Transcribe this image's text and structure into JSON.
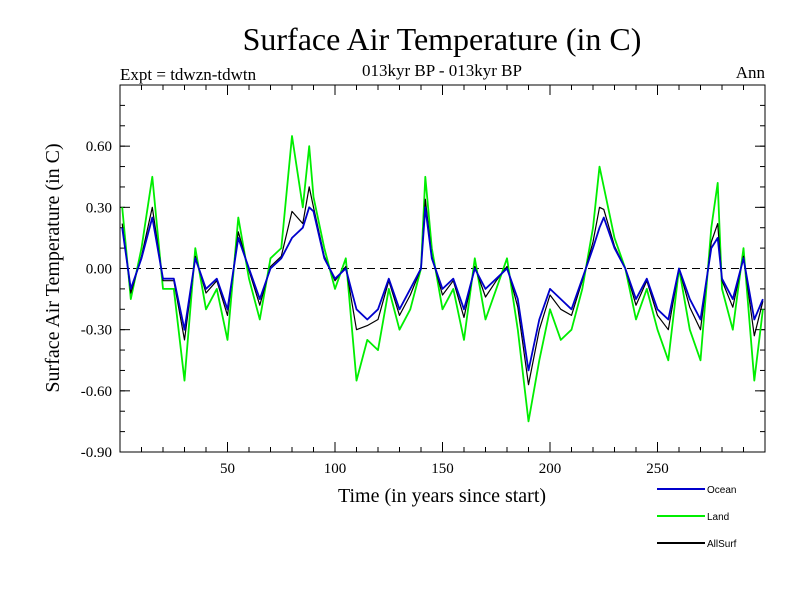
{
  "chart_data": {
    "type": "line",
    "title": "Surface Air Temperature (in C)",
    "subtitle": "013kyr BP - 013kyr BP",
    "expt_label": "Expt = tdwzn-tdwtn",
    "season_label": "Ann",
    "xlabel": "Time (in years since start)",
    "ylabel": "Surface Air Temperature (in C)",
    "xlim": [
      0,
      300
    ],
    "ylim": [
      -0.9,
      0.9
    ],
    "xticks": [
      50,
      100,
      150,
      200,
      250
    ],
    "xtick_labels": [
      "50",
      "100",
      "150",
      "200",
      "250"
    ],
    "yticks": [
      -0.9,
      -0.6,
      -0.3,
      0.0,
      0.3,
      0.6
    ],
    "ytick_labels": [
      "-0.90",
      "-0.60",
      "-0.30",
      "0.00",
      "0.30",
      "0.60"
    ],
    "zero_line": "dashed",
    "grid": false,
    "legend_position": "below-right",
    "series": [
      {
        "name": "Ocean",
        "color": "#0000cc",
        "x": [
          1,
          5,
          10,
          15,
          20,
          25,
          30,
          35,
          40,
          45,
          50,
          55,
          60,
          65,
          70,
          75,
          80,
          85,
          88,
          90,
          95,
          100,
          105,
          110,
          115,
          120,
          125,
          130,
          135,
          140,
          142,
          145,
          150,
          155,
          160,
          165,
          170,
          175,
          180,
          185,
          190,
          195,
          200,
          205,
          210,
          215,
          220,
          223,
          225,
          230,
          235,
          240,
          245,
          250,
          255,
          260,
          265,
          270,
          275,
          278,
          280,
          285,
          290,
          295,
          299
        ],
        "values": [
          0.2,
          -0.1,
          0.05,
          0.25,
          -0.05,
          -0.05,
          -0.3,
          0.05,
          -0.1,
          -0.05,
          -0.2,
          0.15,
          0.0,
          -0.15,
          0.0,
          0.05,
          0.15,
          0.2,
          0.3,
          0.28,
          0.05,
          -0.05,
          0.0,
          -0.2,
          -0.25,
          -0.2,
          -0.05,
          -0.2,
          -0.1,
          0.0,
          0.3,
          0.05,
          -0.1,
          -0.05,
          -0.2,
          0.0,
          -0.1,
          -0.05,
          0.0,
          -0.15,
          -0.5,
          -0.25,
          -0.1,
          -0.15,
          -0.2,
          -0.05,
          0.1,
          0.2,
          0.25,
          0.1,
          0.0,
          -0.15,
          -0.05,
          -0.2,
          -0.25,
          0.0,
          -0.15,
          -0.25,
          0.1,
          0.15,
          -0.05,
          -0.15,
          0.05,
          -0.25,
          -0.15
        ]
      },
      {
        "name": "Land",
        "color": "#00ee00",
        "x": [
          1,
          5,
          10,
          15,
          20,
          25,
          30,
          35,
          40,
          45,
          50,
          55,
          60,
          65,
          70,
          75,
          80,
          85,
          88,
          90,
          95,
          100,
          105,
          110,
          115,
          120,
          125,
          130,
          135,
          140,
          142,
          145,
          150,
          155,
          160,
          165,
          170,
          175,
          180,
          185,
          190,
          195,
          200,
          205,
          210,
          215,
          220,
          223,
          225,
          230,
          235,
          240,
          245,
          250,
          255,
          260,
          265,
          270,
          275,
          278,
          280,
          285,
          290,
          295,
          299
        ],
        "values": [
          0.3,
          -0.15,
          0.1,
          0.45,
          -0.1,
          -0.1,
          -0.55,
          0.1,
          -0.2,
          -0.1,
          -0.35,
          0.25,
          -0.05,
          -0.25,
          0.05,
          0.1,
          0.65,
          0.3,
          0.6,
          0.35,
          0.1,
          -0.1,
          0.05,
          -0.55,
          -0.35,
          -0.4,
          -0.1,
          -0.3,
          -0.2,
          0.0,
          0.45,
          0.1,
          -0.2,
          -0.1,
          -0.35,
          0.05,
          -0.25,
          -0.1,
          0.05,
          -0.3,
          -0.75,
          -0.45,
          -0.2,
          -0.35,
          -0.3,
          -0.1,
          0.2,
          0.5,
          0.4,
          0.15,
          0.0,
          -0.25,
          -0.1,
          -0.3,
          -0.45,
          0.0,
          -0.3,
          -0.45,
          0.2,
          0.42,
          -0.1,
          -0.3,
          0.1,
          -0.55,
          -0.2
        ]
      },
      {
        "name": "AllSurf",
        "color": "#000000",
        "x": [
          1,
          5,
          10,
          15,
          20,
          25,
          30,
          35,
          40,
          45,
          50,
          55,
          60,
          65,
          70,
          75,
          80,
          85,
          88,
          90,
          95,
          100,
          105,
          110,
          115,
          120,
          125,
          130,
          135,
          140,
          142,
          145,
          150,
          155,
          160,
          165,
          170,
          175,
          180,
          185,
          190,
          195,
          200,
          205,
          210,
          215,
          220,
          223,
          225,
          230,
          235,
          240,
          245,
          250,
          255,
          260,
          265,
          270,
          275,
          278,
          280,
          285,
          290,
          295,
          299
        ],
        "values": [
          0.22,
          -0.12,
          0.06,
          0.3,
          -0.06,
          -0.06,
          -0.35,
          0.06,
          -0.12,
          -0.06,
          -0.23,
          0.18,
          -0.01,
          -0.18,
          0.01,
          0.06,
          0.28,
          0.22,
          0.4,
          0.3,
          0.06,
          -0.06,
          0.01,
          -0.3,
          -0.28,
          -0.25,
          -0.06,
          -0.23,
          -0.13,
          0.0,
          0.34,
          0.06,
          -0.13,
          -0.06,
          -0.24,
          0.01,
          -0.14,
          -0.06,
          0.01,
          -0.19,
          -0.57,
          -0.3,
          -0.13,
          -0.2,
          -0.23,
          -0.06,
          0.13,
          0.3,
          0.29,
          0.11,
          0.0,
          -0.18,
          -0.06,
          -0.23,
          -0.3,
          0.0,
          -0.19,
          -0.3,
          0.13,
          0.22,
          -0.06,
          -0.19,
          0.06,
          -0.33,
          -0.16
        ]
      }
    ]
  }
}
